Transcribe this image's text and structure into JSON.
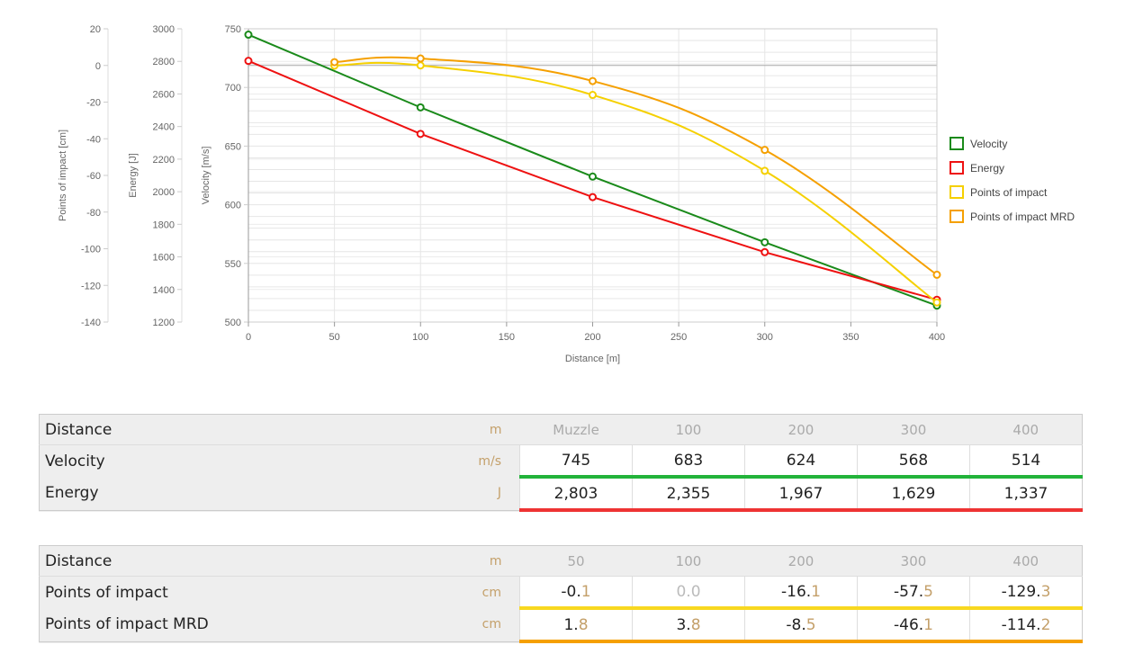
{
  "chart_data": {
    "type": "line",
    "xlabel": "Distance [m]",
    "x_ticks": [
      "0",
      "50",
      "100",
      "150",
      "200",
      "250",
      "300",
      "350",
      "400"
    ],
    "xlim": [
      0,
      400
    ],
    "axes": [
      {
        "label": "Points of impact [cm]",
        "ylim": [
          -140,
          20
        ],
        "ticks": [
          "20",
          "0",
          "-20",
          "-40",
          "-60",
          "-80",
          "-100",
          "-120",
          "-140"
        ]
      },
      {
        "label": "Energy [J]",
        "ylim": [
          1200,
          3000
        ],
        "ticks": [
          "3000",
          "2800",
          "2600",
          "2400",
          "2200",
          "2000",
          "1800",
          "1600",
          "1400",
          "1200"
        ]
      },
      {
        "label": "Velocity [m/s]",
        "ylim": [
          500,
          750
        ],
        "ticks": [
          "750",
          "700",
          "650",
          "600",
          "550",
          "500"
        ]
      }
    ],
    "series": [
      {
        "name": "Velocity",
        "color": "#1a8a1a",
        "axis": 2,
        "x": [
          0,
          100,
          200,
          300,
          400
        ],
        "y": [
          745,
          683,
          624,
          568,
          514
        ]
      },
      {
        "name": "Energy",
        "color": "#ee1111",
        "axis": 1,
        "x": [
          0,
          100,
          200,
          300,
          400
        ],
        "y": [
          2803,
          2355,
          1967,
          1629,
          1337
        ]
      },
      {
        "name": "Points of impact",
        "color": "#f5d000",
        "axis": 0,
        "x": [
          50,
          100,
          200,
          300,
          400
        ],
        "y": [
          -0.1,
          0.0,
          -16.1,
          -57.5,
          -129.3
        ]
      },
      {
        "name": "Points of impact MRD",
        "color": "#f5a000",
        "axis": 0,
        "x": [
          50,
          100,
          200,
          300,
          400
        ],
        "y": [
          1.8,
          3.8,
          -8.5,
          -46.1,
          -114.2
        ]
      }
    ]
  },
  "table1": {
    "rows": [
      {
        "label": "Distance",
        "unit": "m",
        "values": [
          "Muzzle",
          "100",
          "200",
          "300",
          "400"
        ]
      },
      {
        "label": "Velocity",
        "unit": "m/s",
        "values": [
          "745",
          "683",
          "624",
          "568",
          "514"
        ],
        "bar": "#22b33a"
      },
      {
        "label": "Energy",
        "unit": "J",
        "values": [
          "2,803",
          "2,355",
          "1,967",
          "1,629",
          "1,337"
        ],
        "bar": "#ee3333"
      }
    ]
  },
  "table2": {
    "rows": [
      {
        "label": "Distance",
        "unit": "m",
        "values": [
          "50",
          "100",
          "200",
          "300",
          "400"
        ]
      },
      {
        "label": "Points of impact",
        "unit": "cm",
        "values": [
          [
            "-0.",
            "1"
          ],
          [
            "0.0",
            ""
          ],
          [
            "-16.",
            "1"
          ],
          [
            "-57.",
            "5"
          ],
          [
            "-129.",
            "3"
          ]
        ],
        "bar": "#f8d820"
      },
      {
        "label": "Points of impact MRD",
        "unit": "cm",
        "values": [
          [
            "1.",
            "8"
          ],
          [
            "3.",
            "8"
          ],
          [
            "-8.",
            "5"
          ],
          [
            "-46.",
            "1"
          ],
          [
            "-114.",
            "2"
          ]
        ],
        "bar": "#f5a000"
      }
    ]
  }
}
